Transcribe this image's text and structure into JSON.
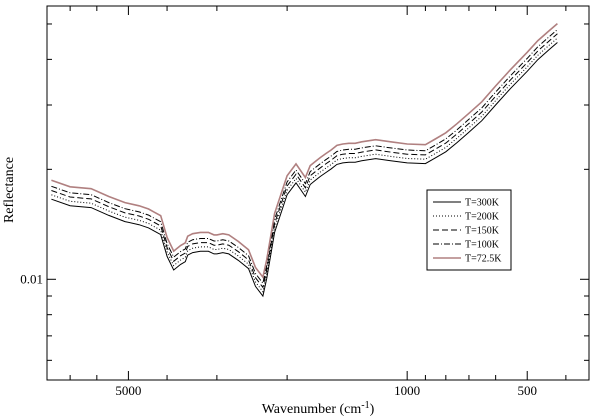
{
  "chart_data": {
    "type": "line",
    "title": "",
    "xlabel": "Wavenumber (cm",
    "xlabel_sup": "-1",
    "xlabel_close": ")",
    "ylabel": "Reflectance",
    "x_axis_reversed": true,
    "x_scale": "log",
    "y_scale": "log",
    "xlim": [
      8000,
      350
    ],
    "ylim": [
      0.0053,
      0.056
    ],
    "x_ticks": [
      {
        "value": 5000,
        "label": "5000"
      },
      {
        "value": 1000,
        "label": "1000"
      },
      {
        "value": 500,
        "label": "500"
      }
    ],
    "y_ticks": [
      {
        "value": 0.01,
        "label": "0.01"
      }
    ],
    "legend_position": "center-right",
    "series": [
      {
        "name": "T=300K",
        "color": "#000000",
        "dash": "",
        "offset": -0.0008
      },
      {
        "name": "T=200K",
        "color": "#000000",
        "dash": "1,2",
        "offset": -0.0004
      },
      {
        "name": "T=150K",
        "color": "#000000",
        "dash": "6,3",
        "offset": 0.0
      },
      {
        "name": "T=100K",
        "color": "#000000",
        "dash": "6,2,1,2",
        "offset": 0.0004
      },
      {
        "name": "T=72.5K",
        "color": "#b08080",
        "dash": "",
        "offset": 0.001
      }
    ],
    "x": [
      7800,
      7000,
      6200,
      5600,
      5100,
      4700,
      4450,
      4300,
      4150,
      4000,
      3850,
      3700,
      3600,
      3550,
      3450,
      3300,
      3150,
      3050,
      3000,
      2900,
      2800,
      2650,
      2500,
      2400,
      2300,
      2250,
      2150,
      2000,
      1900,
      1800,
      1750,
      1700,
      1650,
      1600,
      1550,
      1500,
      1450,
      1400,
      1350,
      1300,
      1200,
      1100,
      1000,
      900,
      850,
      800,
      750,
      700,
      650,
      600,
      550,
      500,
      470,
      440,
      420
    ],
    "values": [
      0.0175,
      0.0168,
      0.0166,
      0.0158,
      0.0152,
      0.0149,
      0.0146,
      0.0143,
      0.014,
      0.0122,
      0.0112,
      0.0116,
      0.0118,
      0.0123,
      0.0125,
      0.0126,
      0.0126,
      0.0124,
      0.0124,
      0.0125,
      0.0124,
      0.0119,
      0.0113,
      0.0101,
      0.0095,
      0.0106,
      0.0142,
      0.018,
      0.0194,
      0.0178,
      0.0192,
      0.0197,
      0.0202,
      0.0207,
      0.0212,
      0.0218,
      0.022,
      0.0221,
      0.0221,
      0.0223,
      0.0226,
      0.0223,
      0.022,
      0.0219,
      0.0227,
      0.0236,
      0.025,
      0.0267,
      0.0287,
      0.0317,
      0.0352,
      0.0392,
      0.0422,
      0.045,
      0.047
    ]
  }
}
